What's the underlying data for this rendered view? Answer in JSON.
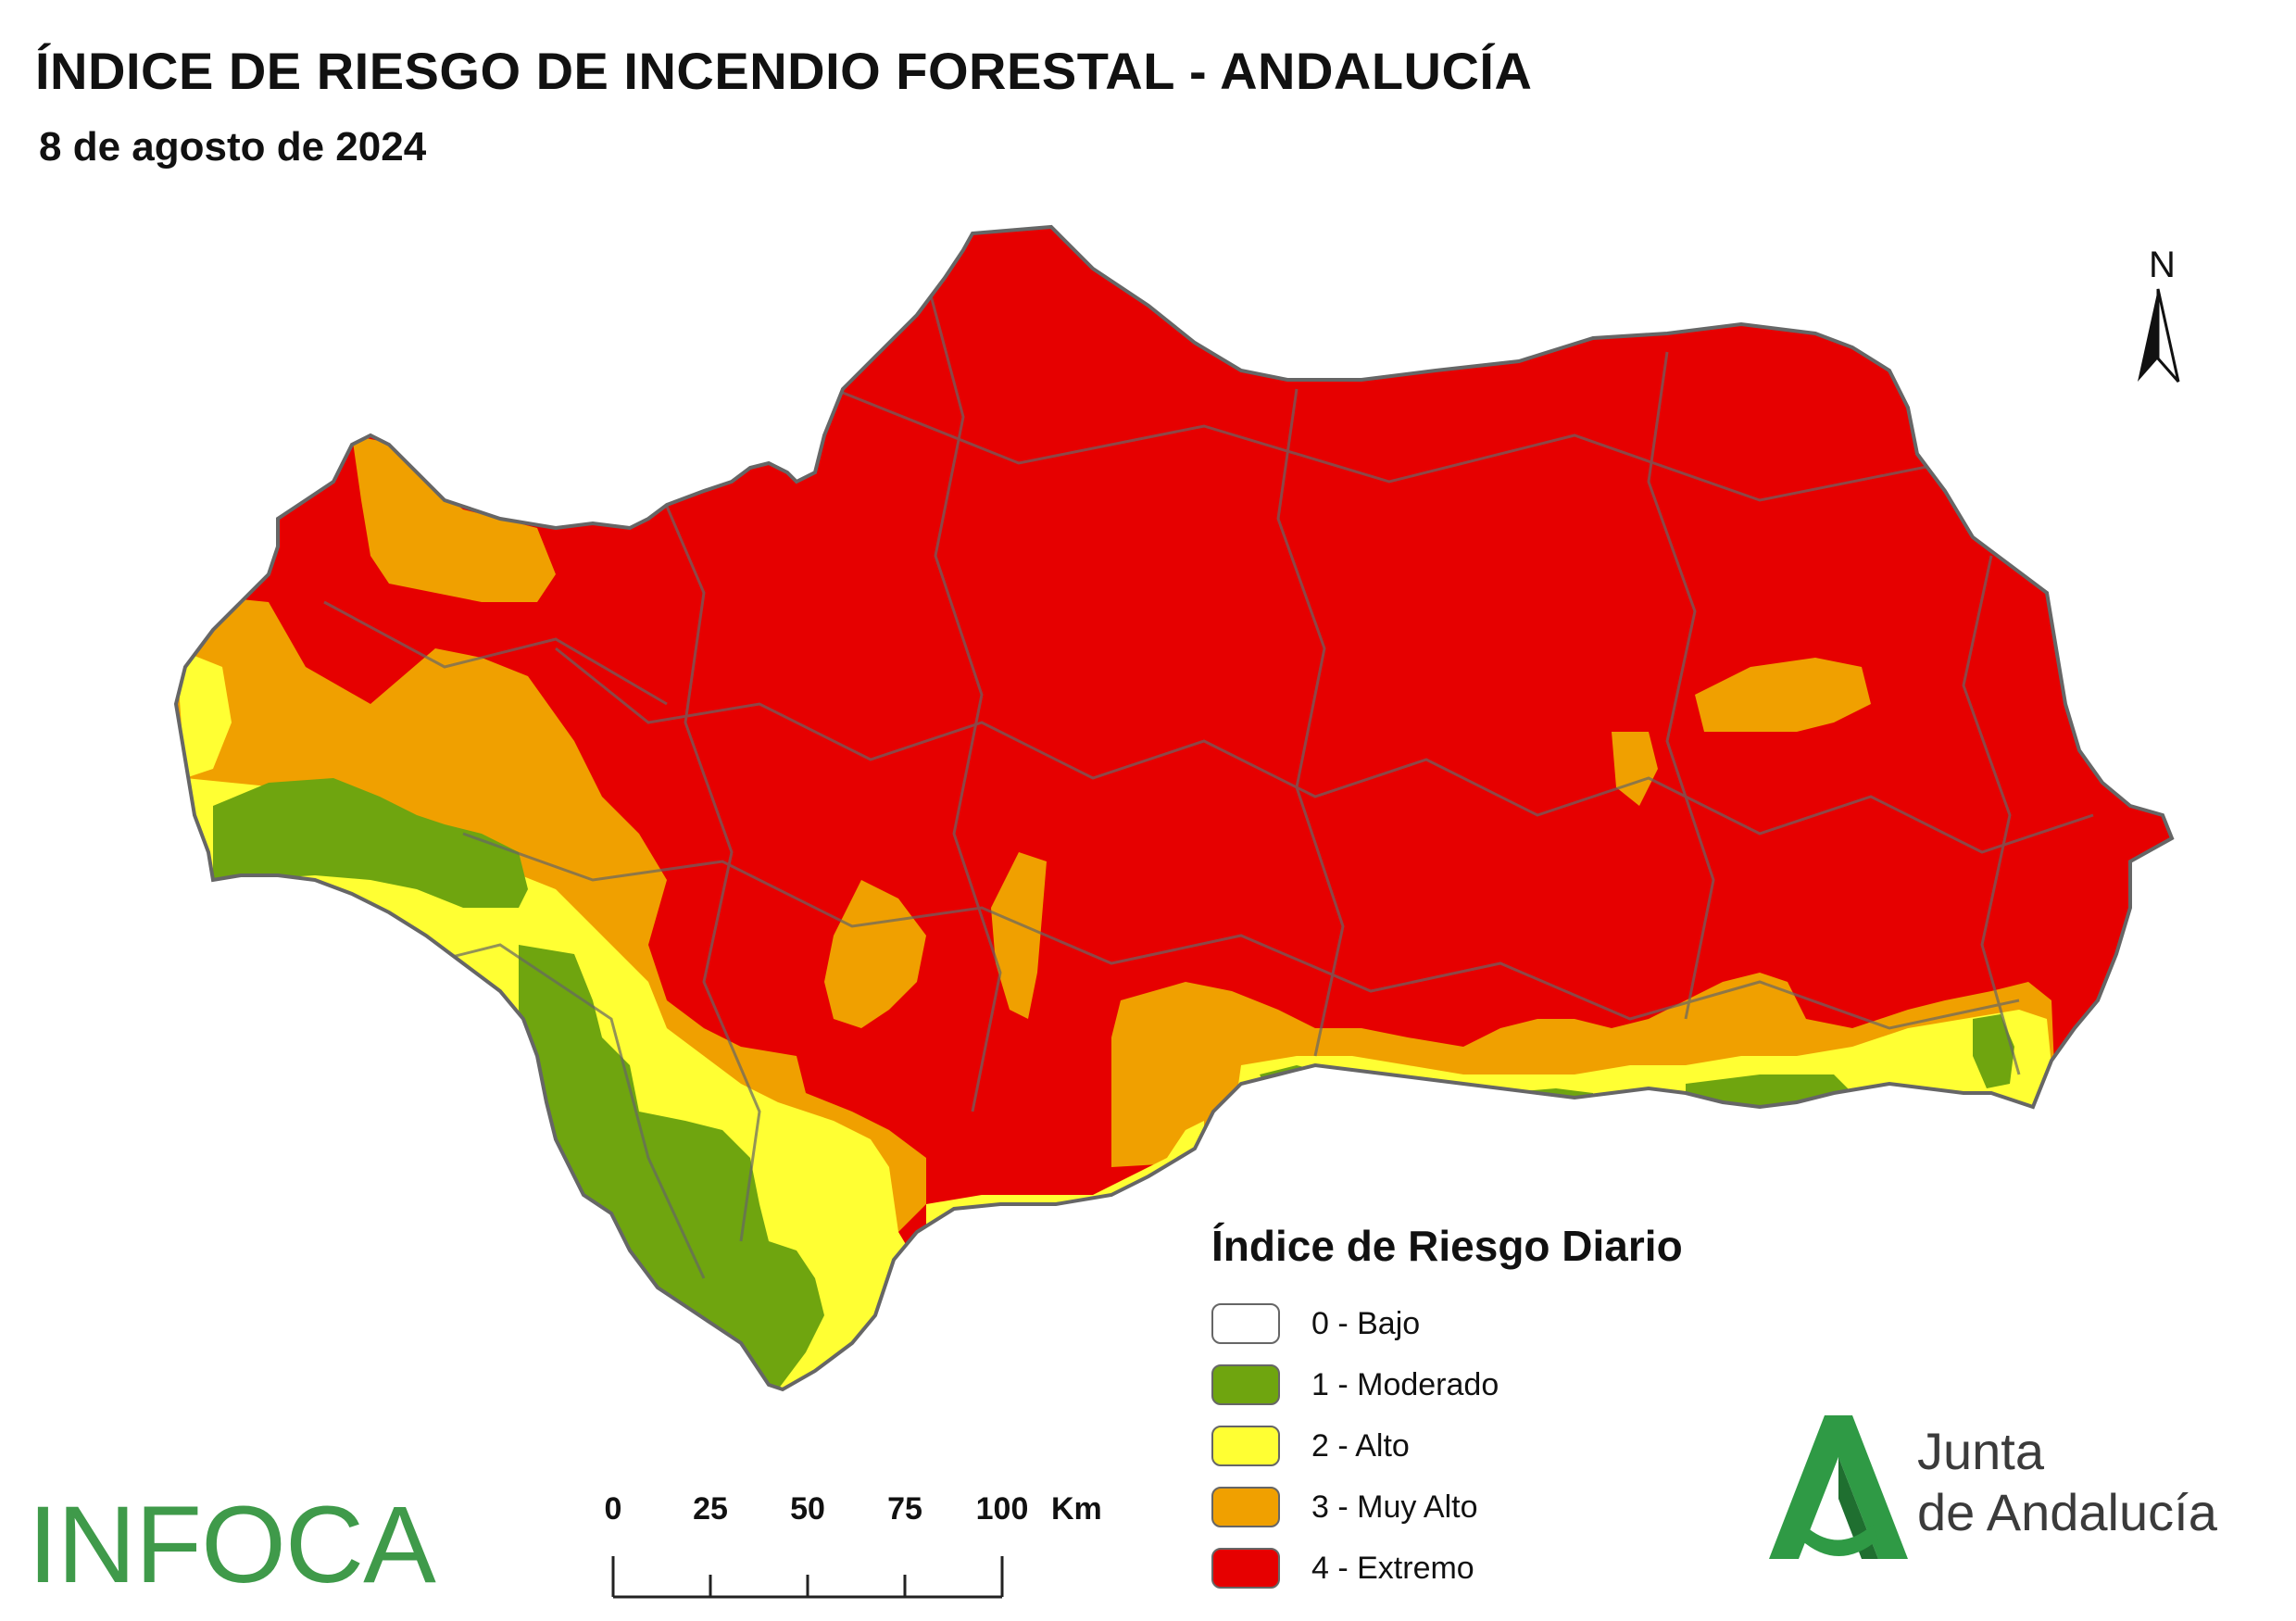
{
  "header": {
    "title": "ÍNDICE DE RIESGO DE INCENDIO FORESTAL - ANDALUCÍA",
    "date": "8 de agosto de 2024"
  },
  "north_arrow": {
    "label": "N"
  },
  "legend": {
    "title": "Índice de Riesgo Diario",
    "items": [
      {
        "label": "0 - Bajo",
        "color": "#ffffff"
      },
      {
        "label": "1 - Moderado",
        "color": "#6fa50f"
      },
      {
        "label": "2 - Alto",
        "color": "#ffff33"
      },
      {
        "label": "3 - Muy Alto",
        "color": "#f0a000"
      },
      {
        "label": "4 - Extremo",
        "color": "#e60000"
      }
    ]
  },
  "scale_bar": {
    "ticks": [
      "0",
      "25",
      "50",
      "75",
      "100"
    ],
    "unit": "Km"
  },
  "logos": {
    "infoca": "INFOCA",
    "junta_line1": "Junta",
    "junta_line2": "de Andalucía"
  },
  "colors": {
    "extremo": "#e60000",
    "muy_alto": "#f0a000",
    "alto": "#ffff33",
    "moderado": "#6fa50f",
    "border": "#666666",
    "infoca_green": "#3f9a4a",
    "junta_green": "#2f9a45"
  }
}
